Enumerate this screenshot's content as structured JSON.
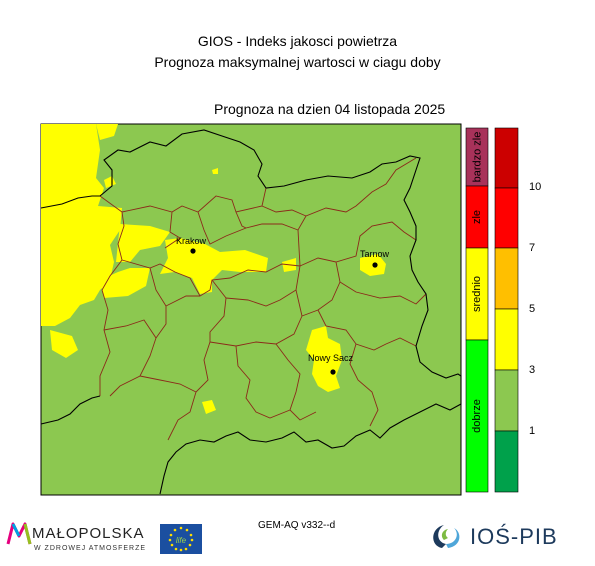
{
  "header": {
    "title_line1": "GIOS - Indeks jakosci powietrza",
    "title_line2": "Prognoza maksymalnej wartosci w ciagu doby",
    "forecast_date": "Prognoza na dzien  04 listopada 2025"
  },
  "map": {
    "cities": [
      {
        "name": "Krakow"
      },
      {
        "name": "Tarnow"
      },
      {
        "name": "Nowy Sacz"
      }
    ],
    "colors": {
      "background_green": "#8cc850",
      "yellow": "#ffff00",
      "border_brown": "#8b2a1a",
      "border_black": "#000000"
    }
  },
  "legend": {
    "categories": [
      {
        "label": "bardzo zle",
        "color": "#a8325a"
      },
      {
        "label": "zle",
        "color": "#ff0000"
      },
      {
        "label": "srednio",
        "color": "#ffff00"
      },
      {
        "label": "dobrze",
        "color": "#00ff00"
      }
    ],
    "scale_colors": [
      "#cc0000",
      "#ff0000",
      "#ffbf00",
      "#ffff00",
      "#8cc850",
      "#00a14b"
    ],
    "tick_labels": [
      "10",
      "7",
      "5",
      "3",
      "1"
    ]
  },
  "footer": {
    "model_label": "GEM-AQ v332--d",
    "malopolska_logo_text": "MAŁOPOLSKA",
    "malopolska_tagline": "W ZDROWEJ ATMOSFERZE",
    "eu_flag_text": "life",
    "ios_logo_text": "IOŚ-PIB"
  }
}
